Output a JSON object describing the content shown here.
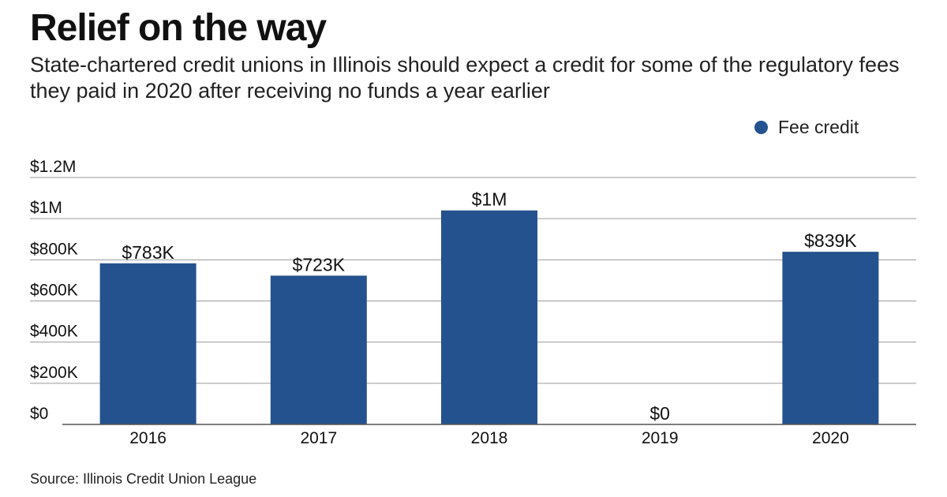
{
  "header": {
    "title": "Relief on the way",
    "subtitle": "State-chartered credit unions in Illinois should expect a credit for some of the regulatory fees they paid in 2020 after receiving no funds a year earlier"
  },
  "legend": {
    "label": "Fee credit"
  },
  "footer": {
    "source": "Source: Illinois Credit Union League"
  },
  "colors": {
    "bar": "#24528e",
    "grid": "#9a9a9a",
    "axis": "#555555",
    "text": "#111111"
  },
  "chart_data": {
    "type": "bar",
    "title": "Relief on the way",
    "xlabel": "",
    "ylabel": "",
    "categories": [
      "2016",
      "2017",
      "2018",
      "2019",
      "2020"
    ],
    "series": [
      {
        "name": "Fee credit",
        "values": [
          783000,
          723000,
          1040000,
          0,
          839000
        ],
        "labels": [
          "$783K",
          "$723K",
          "$1M",
          "$0",
          "$839K"
        ]
      }
    ],
    "ylim": [
      0,
      1200000
    ],
    "yticks": [
      0,
      200000,
      400000,
      600000,
      800000,
      1000000,
      1200000
    ],
    "ytick_labels": [
      "$0",
      "$200K",
      "$400K",
      "$600K",
      "$800K",
      "$1M",
      "$1.2M"
    ],
    "grid": true,
    "legend_position": "top-right"
  }
}
